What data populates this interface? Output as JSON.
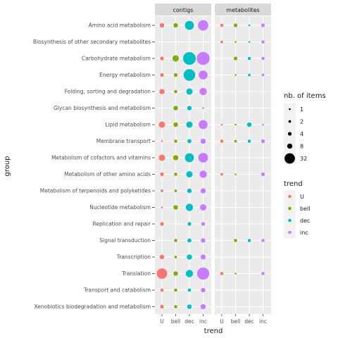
{
  "chart_data": {
    "type": "scatter",
    "xlabel": "trend",
    "ylabel": "group",
    "facets": [
      "contigs",
      "metabolites"
    ],
    "trends": [
      "U",
      "bell",
      "dec",
      "inc"
    ],
    "trend_colors": {
      "U": "#F8766D",
      "bell": "#7CAE00",
      "dec": "#00BFC4",
      "inc": "#C77CFF"
    },
    "groups": [
      "Amino acid metabolism",
      "Biosynthesis of other secondary metabolites",
      "Carbohydrate metabolism",
      "Energy metabolism",
      "Folding, sorting and degradation",
      "Glycan biosynthesis and metabolism",
      "Lipid metabolism",
      "Membrane transport",
      "Metabolism of cofactors and vitamins",
      "Metabolism of other amino acids",
      "Metabolism of terpenoids and polyketides",
      "Nucleotide metabolism",
      "Replication and repair",
      "Signal transduction",
      "Transcription",
      "Translation",
      "Transport and catabolism",
      "Xenobiotics biodegradation and metabolism"
    ],
    "points": {
      "contigs": [
        {
          "group": "Amino acid metabolism",
          "U": 6,
          "bell": 6,
          "dec": 24,
          "inc": 32
        },
        {
          "group": "Biosynthesis of other secondary metabolites",
          "U": null,
          "bell": null,
          "dec": null,
          "inc": null
        },
        {
          "group": "Carbohydrate metabolism",
          "U": 4,
          "bell": 12,
          "dec": 48,
          "inc": 50
        },
        {
          "group": "Energy metabolism",
          "U": 4,
          "bell": 4,
          "dec": 40,
          "inc": 24
        },
        {
          "group": "Folding, sorting and degradation",
          "U": 8,
          "bell": 3,
          "dec": 12,
          "inc": 16
        },
        {
          "group": "Glycan biosynthesis and metabolism",
          "U": null,
          "bell": 6,
          "dec": 6,
          "inc": 1
        },
        {
          "group": "Lipid metabolism",
          "U": 12,
          "bell": 6,
          "dec": 12,
          "inc": 24
        },
        {
          "group": "Membrane transport",
          "U": 1,
          "bell": 3,
          "dec": 5,
          "inc": 8
        },
        {
          "group": "Metabolism of cofactors and vitamins",
          "U": 12,
          "bell": 8,
          "dec": 24,
          "inc": 28
        },
        {
          "group": "Metabolism of other amino acids",
          "U": 4,
          "bell": 3,
          "dec": 12,
          "inc": 16
        },
        {
          "group": "Metabolism of terpenoids and polyketides",
          "U": 2,
          "bell": 2,
          "dec": 6,
          "inc": 8
        },
        {
          "group": "Nucleotide metabolism",
          "U": 1,
          "bell": 6,
          "dec": 16,
          "inc": 12
        },
        {
          "group": "Replication and repair",
          "U": 4,
          "bell": null,
          "dec": 4,
          "inc": 4
        },
        {
          "group": "Signal transduction",
          "U": null,
          "bell": 3,
          "dec": 5,
          "inc": 6
        },
        {
          "group": "Transcription",
          "U": 6,
          "bell": 2,
          "dec": 8,
          "inc": 8
        },
        {
          "group": "Translation",
          "U": 32,
          "bell": 6,
          "dec": 16,
          "inc": 44
        },
        {
          "group": "Transport and catabolism",
          "U": 3,
          "bell": 3,
          "dec": 3,
          "inc": 6
        },
        {
          "group": "Xenobiotics biodegradation and metabolism",
          "U": 4,
          "bell": 3,
          "dec": 6,
          "inc": 8
        }
      ],
      "metabolites": [
        {
          "group": "Amino acid metabolism",
          "U": 3,
          "bell": 4,
          "dec": 1,
          "inc": 4
        },
        {
          "group": "Biosynthesis of other secondary metabolites",
          "U": 2,
          "bell": 1,
          "dec": 1,
          "inc": 3
        },
        {
          "group": "Carbohydrate metabolism",
          "U": null,
          "bell": 4,
          "dec": 3,
          "inc": 3
        },
        {
          "group": "Energy metabolism",
          "U": null,
          "bell": 1,
          "dec": 2,
          "inc": 2
        },
        {
          "group": "Folding, sorting and degradation",
          "U": null,
          "bell": null,
          "dec": null,
          "inc": null
        },
        {
          "group": "Glycan biosynthesis and metabolism",
          "U": null,
          "bell": null,
          "dec": null,
          "inc": null
        },
        {
          "group": "Lipid metabolism",
          "U": 1,
          "bell": 1,
          "dec": 6,
          "inc": 1
        },
        {
          "group": "Membrane transport",
          "U": 3,
          "bell": 2,
          "dec": 3,
          "inc": 4
        },
        {
          "group": "Metabolism of cofactors and vitamins",
          "U": null,
          "bell": null,
          "dec": null,
          "inc": null
        },
        {
          "group": "Metabolism of other amino acids",
          "U": 2,
          "bell": 1,
          "dec": null,
          "inc": 4
        },
        {
          "group": "Metabolism of terpenoids and polyketides",
          "U": null,
          "bell": null,
          "dec": null,
          "inc": null
        },
        {
          "group": "Nucleotide metabolism",
          "U": null,
          "bell": null,
          "dec": null,
          "inc": null
        },
        {
          "group": "Replication and repair",
          "U": null,
          "bell": null,
          "dec": null,
          "inc": null
        },
        {
          "group": "Signal transduction",
          "U": null,
          "bell": 3,
          "dec": 3,
          "inc": 3
        },
        {
          "group": "Transcription",
          "U": null,
          "bell": null,
          "dec": null,
          "inc": null
        },
        {
          "group": "Translation",
          "U": 3,
          "bell": 1,
          "dec": null,
          "inc": 3
        },
        {
          "group": "Transport and catabolism",
          "U": null,
          "bell": null,
          "dec": null,
          "inc": null
        },
        {
          "group": "Xenobiotics biodegradation and metabolism",
          "U": null,
          "bell": null,
          "dec": null,
          "inc": null
        }
      ]
    },
    "size_legend": {
      "title": "nb. of items",
      "breaks": [
        1,
        2,
        4,
        8,
        32
      ]
    },
    "color_legend": {
      "title": "trend",
      "entries": [
        "U",
        "bell",
        "dec",
        "inc"
      ]
    },
    "grid": true,
    "legend_position": "right"
  }
}
